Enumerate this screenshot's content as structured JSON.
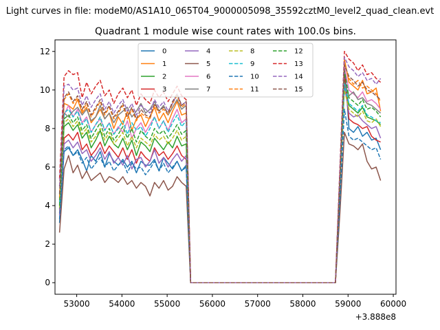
{
  "figure": {
    "suptitle": "Light curves in file: modeM0/AS1A10_065T04_9000005098_35592cztM0_level2_quad_clean.evt",
    "offset_label": "+3.888e8"
  },
  "chart_data": {
    "type": "line",
    "title": "Quadrant 1 module wise count rates with 100.0s bins.",
    "xlabel": "",
    "ylabel": "",
    "x_offset": 388800000,
    "xlim": [
      52520,
      60060
    ],
    "ylim": [
      -0.6,
      12.6
    ],
    "xticks": [
      53000,
      54000,
      55000,
      56000,
      57000,
      58000,
      59000,
      60000
    ],
    "yticks": [
      0,
      2,
      4,
      6,
      8,
      10,
      12
    ],
    "grid": false,
    "legend_position": "top-center",
    "legend_columns": 4,
    "segments": [
      {
        "start": 52620,
        "count": 29
      },
      {
        "start": 55520,
        "count": 33
      },
      {
        "start": 58820,
        "count": 10
      }
    ],
    "series": [
      {
        "name": "0",
        "color": "#1f77b4",
        "dash": "solid",
        "seg1": [
          3.1,
          6.8,
          7.0,
          6.6,
          6.9,
          6.4,
          5.8,
          6.6,
          6.3,
          6.8,
          6.0,
          6.7,
          6.3,
          6.1,
          6.4,
          6.0,
          6.3,
          5.7,
          6.3,
          6.1,
          6.1,
          6.4,
          5.8,
          6.5,
          6.2,
          5.9,
          6.3,
          5.8,
          6.1
        ],
        "seg3": [
          4.5,
          11.5,
          8.0,
          7.8,
          8.1,
          7.6,
          7.8,
          7.4,
          7.5,
          6.9
        ]
      },
      {
        "name": "1",
        "color": "#ff7f0e",
        "dash": "solid",
        "seg1": [
          4.2,
          9.3,
          9.2,
          9.0,
          9.5,
          8.8,
          9.1,
          8.3,
          8.6,
          9.0,
          8.5,
          8.8,
          8.0,
          8.6,
          8.2,
          8.9,
          7.9,
          8.5,
          8.7,
          8.1,
          8.6,
          9.1,
          8.4,
          8.8,
          8.3,
          8.9,
          9.4,
          8.7,
          8.8
        ],
        "seg3": [
          5.5,
          11.6,
          10.4,
          10.2,
          10.0,
          10.5,
          9.8,
          9.9,
          10.1,
          8.9
        ]
      },
      {
        "name": "2",
        "color": "#2ca02c",
        "dash": "solid",
        "seg1": [
          3.8,
          8.1,
          8.3,
          7.9,
          8.2,
          7.5,
          7.8,
          7.0,
          7.4,
          7.9,
          7.1,
          7.6,
          7.2,
          7.0,
          7.5,
          6.9,
          7.4,
          6.6,
          7.3,
          7.1,
          6.8,
          7.5,
          7.2,
          6.9,
          7.3,
          7.0,
          7.6,
          7.1,
          7.2
        ],
        "seg3": [
          5.0,
          10.6,
          9.2,
          9.0,
          8.8,
          9.1,
          8.6,
          8.5,
          8.4,
          8.2
        ]
      },
      {
        "name": "3",
        "color": "#d62728",
        "dash": "solid",
        "seg1": [
          3.6,
          7.5,
          7.7,
          7.4,
          7.8,
          6.9,
          7.2,
          6.6,
          6.9,
          7.3,
          6.7,
          7.1,
          6.8,
          6.5,
          7.0,
          6.4,
          6.9,
          6.2,
          6.8,
          6.5,
          6.3,
          7.0,
          6.6,
          6.8,
          6.4,
          6.7,
          7.1,
          6.6,
          6.4
        ],
        "seg3": [
          4.8,
          10.8,
          8.5,
          8.3,
          8.2,
          8.0,
          8.1,
          7.6,
          7.4,
          7.3
        ]
      },
      {
        "name": "4",
        "color": "#9467bd",
        "dash": "solid",
        "seg1": [
          3.5,
          7.2,
          7.4,
          7.0,
          7.3,
          6.7,
          6.9,
          6.3,
          6.6,
          7.0,
          6.4,
          6.8,
          6.2,
          6.5,
          6.1,
          6.6,
          5.9,
          6.4,
          6.5,
          6.0,
          6.3,
          6.9,
          6.2,
          6.5,
          6.0,
          6.4,
          6.7,
          6.3,
          6.6
        ],
        "seg3": [
          4.7,
          10.2,
          8.8,
          8.6,
          8.7,
          8.4,
          8.2,
          8.0,
          8.1,
          7.5
        ]
      },
      {
        "name": "5",
        "color": "#8c564b",
        "dash": "solid",
        "seg1": [
          2.6,
          5.9,
          6.6,
          5.7,
          6.1,
          5.4,
          5.8,
          5.3,
          5.5,
          5.7,
          5.2,
          5.5,
          5.4,
          5.2,
          5.5,
          5.1,
          5.3,
          4.9,
          5.2,
          5.0,
          4.5,
          5.2,
          4.9,
          5.3,
          4.8,
          5.0,
          5.5,
          5.2,
          5.0
        ],
        "seg3": [
          3.6,
          7.8,
          7.2,
          7.1,
          6.9,
          7.2,
          6.3,
          5.9,
          6.0,
          5.3
        ]
      },
      {
        "name": "6",
        "color": "#e377c2",
        "dash": "solid",
        "seg1": [
          4.0,
          8.7,
          9.2,
          8.6,
          9.0,
          8.3,
          8.6,
          7.8,
          8.2,
          8.5,
          7.9,
          8.3,
          7.7,
          8.1,
          7.8,
          8.4,
          7.5,
          8.0,
          8.3,
          7.8,
          8.2,
          8.6,
          8.0,
          8.4,
          7.9,
          8.5,
          9.0,
          8.3,
          8.5
        ],
        "seg3": [
          5.3,
          11.2,
          10.0,
          9.8,
          9.6,
          9.9,
          9.4,
          9.5,
          9.3,
          9.0
        ]
      },
      {
        "name": "7",
        "color": "#7f7f7f",
        "dash": "solid",
        "seg1": [
          4.3,
          8.8,
          8.6,
          8.9,
          9.1,
          8.7,
          9.0,
          8.4,
          8.6,
          9.2,
          8.5,
          8.8,
          8.3,
          8.7,
          8.9,
          9.1,
          8.6,
          8.9,
          9.3,
          8.8,
          9.0,
          9.4,
          8.9,
          9.2,
          8.7,
          9.1,
          9.5,
          9.0,
          9.2
        ],
        "seg3": [
          5.6,
          10.4,
          9.7,
          9.9,
          9.5,
          9.6,
          9.3,
          9.2,
          9.0,
          8.8
        ]
      },
      {
        "name": "8",
        "color": "#bcbd22",
        "dash": "dashed",
        "seg1": [
          3.9,
          8.3,
          8.5,
          8.1,
          8.4,
          7.7,
          8.0,
          7.3,
          7.6,
          8.0,
          7.4,
          7.8,
          7.2,
          7.5,
          7.8,
          7.1,
          7.6,
          7.0,
          7.5,
          7.3,
          7.1,
          7.7,
          7.4,
          7.6,
          7.2,
          7.5,
          7.9,
          7.4,
          7.6
        ],
        "seg3": [
          5.1,
          10.0,
          9.0,
          8.8,
          8.6,
          8.9,
          8.4,
          8.3,
          8.5,
          8.1
        ]
      },
      {
        "name": "9",
        "color": "#17becf",
        "dash": "dashed",
        "seg1": [
          4.1,
          8.8,
          9.0,
          8.6,
          8.9,
          8.2,
          8.5,
          7.8,
          8.2,
          8.6,
          7.9,
          8.3,
          7.7,
          8.0,
          8.4,
          7.7,
          8.3,
          7.9,
          8.1,
          7.6,
          8.0,
          8.6,
          8.0,
          8.4,
          7.8,
          8.3,
          8.7,
          8.1,
          8.4
        ],
        "seg3": [
          5.2,
          10.3,
          9.3,
          9.1,
          8.9,
          9.2,
          8.7,
          8.6,
          8.4,
          8.3
        ]
      },
      {
        "name": "10",
        "color": "#1f77b4",
        "dash": "dashed",
        "seg1": [
          3.3,
          6.9,
          7.1,
          6.6,
          6.8,
          6.2,
          6.5,
          5.9,
          6.2,
          6.5,
          6.0,
          6.3,
          5.8,
          6.1,
          6.3,
          5.7,
          6.2,
          5.9,
          6.0,
          5.6,
          5.9,
          6.3,
          5.8,
          6.2,
          5.7,
          6.0,
          6.3,
          5.8,
          6.0
        ],
        "seg3": [
          4.3,
          9.0,
          7.6,
          7.4,
          7.5,
          7.3,
          7.1,
          6.9,
          7.0,
          6.4
        ]
      },
      {
        "name": "11",
        "color": "#ff7f0e",
        "dash": "dashed",
        "seg1": [
          4.4,
          9.5,
          9.8,
          9.3,
          9.6,
          8.9,
          9.3,
          8.6,
          9.0,
          9.4,
          8.7,
          9.1,
          8.5,
          8.8,
          9.2,
          8.5,
          9.0,
          8.4,
          8.8,
          8.6,
          8.5,
          9.2,
          8.8,
          9.0,
          8.7,
          9.3,
          9.7,
          9.1,
          9.3
        ],
        "seg3": [
          5.6,
          11.4,
          10.6,
          10.3,
          10.5,
          10.1,
          10.2,
          10.0,
          9.8,
          9.4
        ]
      },
      {
        "name": "12",
        "color": "#2ca02c",
        "dash": "dashed",
        "seg1": [
          4.0,
          8.5,
          8.7,
          8.3,
          8.6,
          7.9,
          8.2,
          7.5,
          7.9,
          8.3,
          7.6,
          8.0,
          7.4,
          7.7,
          8.1,
          7.5,
          8.0,
          7.3,
          7.9,
          7.6,
          7.4,
          8.0,
          7.7,
          7.9,
          7.5,
          7.8,
          8.2,
          7.7,
          7.9
        ],
        "seg3": [
          5.3,
          11.0,
          9.6,
          9.4,
          9.2,
          9.5,
          9.0,
          9.1,
          8.9,
          8.6
        ]
      },
      {
        "name": "13",
        "color": "#d62728",
        "dash": "dashed",
        "seg1": [
          5.4,
          10.7,
          11.0,
          10.8,
          10.9,
          9.6,
          10.4,
          9.8,
          10.2,
          10.5,
          9.7,
          10.0,
          9.3,
          9.8,
          10.1,
          9.6,
          10.0,
          9.2,
          9.8,
          9.5,
          9.3,
          10.0,
          9.6,
          9.9,
          9.4,
          9.8,
          10.2,
          9.7,
          9.5
        ],
        "seg3": [
          6.0,
          12.0,
          11.6,
          11.4,
          11.0,
          11.3,
          10.8,
          10.9,
          10.6,
          10.4
        ]
      },
      {
        "name": "14",
        "color": "#9467bd",
        "dash": "dashed",
        "seg1": [
          5.0,
          10.2,
          10.3,
          10.0,
          10.1,
          9.2,
          9.7,
          9.1,
          9.5,
          9.8,
          9.0,
          9.4,
          8.8,
          9.2,
          9.5,
          8.9,
          9.3,
          8.7,
          9.2,
          9.0,
          8.8,
          9.5,
          9.1,
          9.4,
          8.9,
          9.3,
          9.8,
          9.2,
          9.4
        ],
        "seg3": [
          5.8,
          11.7,
          11.2,
          11.0,
          10.7,
          10.9,
          10.5,
          10.6,
          10.3,
          10.6
        ]
      },
      {
        "name": "15",
        "color": "#8c564b",
        "dash": "dashed",
        "seg1": [
          4.6,
          9.6,
          9.9,
          9.4,
          9.7,
          9.0,
          9.4,
          8.7,
          9.1,
          9.5,
          8.8,
          9.2,
          8.6,
          8.9,
          9.3,
          8.6,
          9.1,
          8.5,
          9.0,
          8.7,
          8.6,
          9.3,
          8.9,
          9.1,
          8.8,
          9.4,
          9.8,
          9.2,
          9.4
        ],
        "seg3": [
          5.5,
          11.3,
          10.7,
          10.5,
          10.2,
          10.4,
          10.0,
          9.9,
          9.7,
          9.5
        ]
      }
    ]
  }
}
